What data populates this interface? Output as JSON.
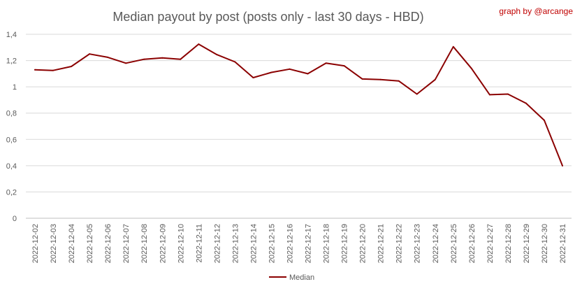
{
  "chart_data": {
    "type": "line",
    "title": "Median payout by post (posts only - last 30 days - HBD)",
    "credit": "graph by @arcange",
    "xlabel": "",
    "ylabel": "",
    "ylim": [
      0,
      1.4
    ],
    "y_ticks": [
      "0",
      "0,2",
      "0,4",
      "0,6",
      "0,8",
      "1",
      "1,2",
      "1,4"
    ],
    "grid": "horizontal",
    "legend_position": "bottom",
    "line_color": "#8b0000",
    "categories": [
      "2022-12-02",
      "2022-12-03",
      "2022-12-04",
      "2022-12-05",
      "2022-12-06",
      "2022-12-07",
      "2022-12-08",
      "2022-12-09",
      "2022-12-10",
      "2022-12-11",
      "2022-12-12",
      "2022-12-13",
      "2022-12-14",
      "2022-12-15",
      "2022-12-16",
      "2022-12-17",
      "2022-12-18",
      "2022-12-19",
      "2022-12-20",
      "2022-12-21",
      "2022-12-22",
      "2022-12-23",
      "2022-12-24",
      "2022-12-25",
      "2022-12-26",
      "2022-12-27",
      "2022-12-28",
      "2022-12-29",
      "2022-12-30",
      "2022-12-31"
    ],
    "series": [
      {
        "name": "Median",
        "values": [
          1.13,
          1.125,
          1.155,
          1.25,
          1.225,
          1.18,
          1.21,
          1.22,
          1.21,
          1.325,
          1.245,
          1.19,
          1.07,
          1.11,
          1.135,
          1.1,
          1.18,
          1.16,
          1.06,
          1.055,
          1.045,
          0.945,
          1.055,
          1.305,
          1.14,
          0.94,
          0.945,
          0.875,
          0.745,
          0.4
        ]
      }
    ]
  }
}
